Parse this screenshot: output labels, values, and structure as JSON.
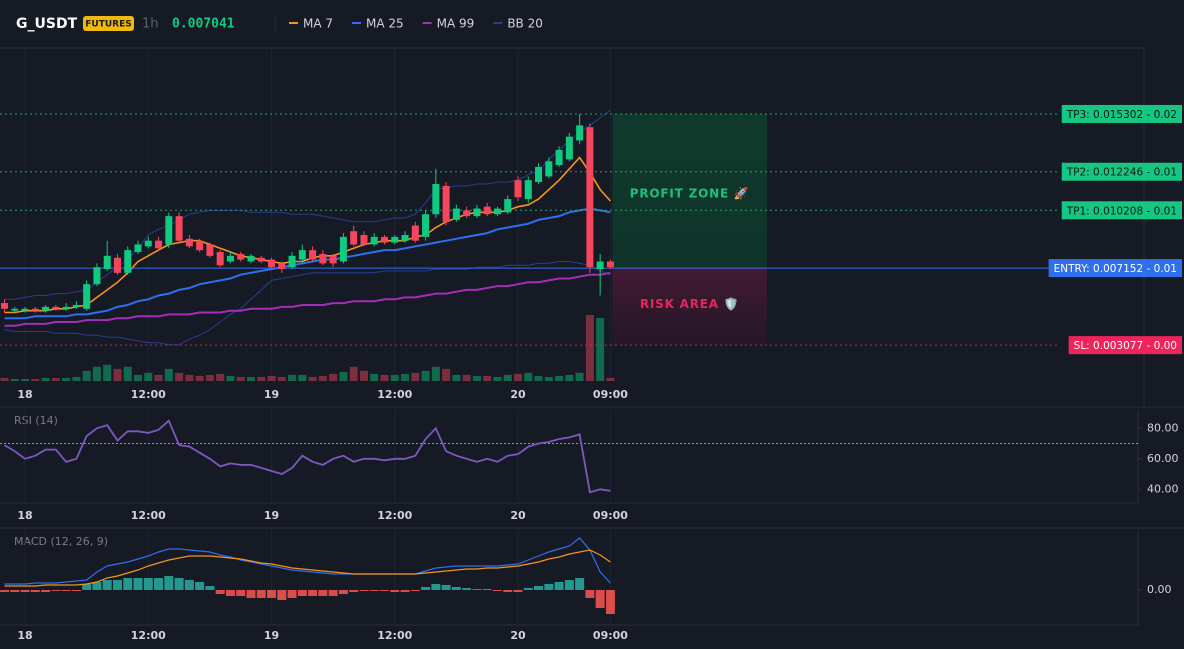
{
  "header": {
    "symbol": "G_USDT",
    "badge": "FUTURES",
    "interval": "1h",
    "price": "0.007041"
  },
  "chart_data": [
    {
      "type": "candlestick",
      "categories": [
        null,
        null,
        "18",
        null,
        null,
        null,
        null,
        null,
        null,
        null,
        null,
        null,
        null,
        null,
        "12:00",
        null,
        null,
        null,
        null,
        null,
        null,
        null,
        null,
        null,
        null,
        null,
        "19",
        null,
        null,
        null,
        null,
        null,
        null,
        null,
        null,
        null,
        null,
        null,
        "12:00",
        null,
        null,
        null,
        null,
        null,
        null,
        null,
        null,
        null,
        null,
        null,
        "20",
        null,
        null,
        null,
        null,
        null,
        null,
        null,
        null,
        "09:00"
      ],
      "open": [
        0.0053,
        0.0049,
        0.0049,
        0.005,
        0.0049,
        0.0051,
        0.005,
        0.0051,
        0.005,
        0.0063,
        0.0071,
        0.0077,
        0.0069,
        0.008,
        0.0083,
        0.0086,
        0.0084,
        0.0099,
        0.0087,
        0.0086,
        0.0084,
        0.008,
        0.0075,
        0.0079,
        0.0075,
        0.0077,
        0.0076,
        0.0074,
        0.0072,
        0.0076,
        0.0081,
        0.0079,
        0.0078,
        0.0075,
        0.0091,
        0.0089,
        0.0084,
        0.0088,
        0.0085,
        0.0086,
        0.0094,
        0.0088,
        0.01,
        0.0115,
        0.0097,
        0.0102,
        0.0099,
        0.0104,
        0.01,
        0.0101,
        0.0118,
        0.0108,
        0.0117,
        0.012,
        0.0126,
        0.0129,
        0.0139,
        0.0146,
        0.0071,
        0.0075
      ],
      "high": [
        0.0055,
        0.0051,
        0.0051,
        0.0051,
        0.0052,
        0.0052,
        0.0053,
        0.0054,
        0.0065,
        0.0074,
        0.0086,
        0.0079,
        0.0083,
        0.0086,
        0.0088,
        0.0088,
        0.0101,
        0.0101,
        0.0089,
        0.0087,
        0.0085,
        0.0081,
        0.008,
        0.008,
        0.0079,
        0.0078,
        0.0077,
        0.0075,
        0.008,
        0.0084,
        0.0083,
        0.0081,
        0.0079,
        0.009,
        0.0094,
        0.0091,
        0.009,
        0.0089,
        0.0089,
        0.0091,
        0.0096,
        0.0102,
        0.0124,
        0.0117,
        0.0105,
        0.0104,
        0.0105,
        0.0106,
        0.0104,
        0.011,
        0.012,
        0.012,
        0.0127,
        0.013,
        0.0136,
        0.0143,
        0.0153,
        0.0148,
        0.0079,
        0.0076
      ],
      "low": [
        0.0048,
        0.0048,
        0.0048,
        0.0048,
        0.0048,
        0.0049,
        0.0049,
        0.005,
        0.0049,
        0.0062,
        0.007,
        0.0068,
        0.0068,
        0.0079,
        0.0082,
        0.0081,
        0.0082,
        0.0085,
        0.0082,
        0.008,
        0.0077,
        0.0072,
        0.0074,
        0.0075,
        0.0074,
        0.0074,
        0.0071,
        0.0069,
        0.0071,
        0.0075,
        0.0075,
        0.0073,
        0.0072,
        0.0074,
        0.0083,
        0.0083,
        0.0083,
        0.0084,
        0.0084,
        0.0085,
        0.0085,
        0.0086,
        0.0098,
        0.0094,
        0.0096,
        0.0098,
        0.0098,
        0.0099,
        0.0099,
        0.01,
        0.0107,
        0.0106,
        0.0116,
        0.0119,
        0.0125,
        0.0128,
        0.0137,
        0.0069,
        0.0057,
        0.0071
      ],
      "close": [
        0.005,
        0.005,
        0.005,
        0.0049,
        0.0051,
        0.005,
        0.0051,
        0.0052,
        0.0063,
        0.0072,
        0.0078,
        0.0069,
        0.0081,
        0.0084,
        0.0086,
        0.0082,
        0.0099,
        0.0086,
        0.0083,
        0.0081,
        0.0078,
        0.0073,
        0.0078,
        0.0076,
        0.0078,
        0.0075,
        0.0072,
        0.0071,
        0.0078,
        0.0081,
        0.0076,
        0.0074,
        0.0074,
        0.0088,
        0.0084,
        0.0084,
        0.0088,
        0.0085,
        0.0088,
        0.0089,
        0.0086,
        0.01,
        0.0116,
        0.0096,
        0.0103,
        0.0099,
        0.0103,
        0.01,
        0.0103,
        0.0108,
        0.0109,
        0.0118,
        0.0125,
        0.0128,
        0.0134,
        0.0141,
        0.0147,
        0.0072,
        0.0075,
        0.0072
      ],
      "volume": [
        3,
        2,
        2,
        2,
        3,
        3,
        3,
        4,
        10,
        14,
        16,
        12,
        14,
        6,
        8,
        6,
        12,
        8,
        6,
        5,
        6,
        7,
        5,
        4,
        4,
        4,
        5,
        4,
        6,
        6,
        4,
        5,
        7,
        9,
        14,
        10,
        7,
        6,
        6,
        7,
        8,
        10,
        14,
        12,
        6,
        6,
        5,
        5,
        4,
        6,
        7,
        8,
        5,
        4,
        5,
        6,
        8,
        65,
        62,
        3
      ],
      "up_color": "#0ecb81",
      "down_color": "#f6465d",
      "series": [
        {
          "name": "MA 7",
          "color": "#f7931a",
          "values": [
            0.0048,
            0.0048,
            0.0049,
            0.0049,
            0.0049,
            0.005,
            0.005,
            0.0051,
            0.0052,
            0.0056,
            0.006,
            0.0064,
            0.0069,
            0.0075,
            0.0078,
            0.0081,
            0.0084,
            0.0085,
            0.0086,
            0.0086,
            0.0084,
            0.0082,
            0.008,
            0.0078,
            0.0077,
            0.0076,
            0.0075,
            0.0074,
            0.0075,
            0.0075,
            0.0077,
            0.0078,
            0.0078,
            0.008,
            0.0082,
            0.0084,
            0.0085,
            0.0086,
            0.0086,
            0.0086,
            0.0088,
            0.0089,
            0.0093,
            0.0096,
            0.0098,
            0.01,
            0.0101,
            0.0101,
            0.0101,
            0.0102,
            0.0104,
            0.0105,
            0.0108,
            0.0113,
            0.0118,
            0.0124,
            0.013,
            0.0122,
            0.0113,
            0.0107
          ]
        },
        {
          "name": "MA 25",
          "color": "#2f6fed",
          "values": [
            0.0045,
            0.0045,
            0.0045,
            0.0046,
            0.0046,
            0.0046,
            0.0046,
            0.0047,
            0.0047,
            0.0048,
            0.0049,
            0.0051,
            0.0052,
            0.0054,
            0.0055,
            0.0057,
            0.0058,
            0.006,
            0.0061,
            0.0063,
            0.0064,
            0.0065,
            0.0066,
            0.0068,
            0.0069,
            0.007,
            0.0071,
            0.0072,
            0.0073,
            0.0074,
            0.0075,
            0.0076,
            0.0076,
            0.0077,
            0.0078,
            0.0079,
            0.008,
            0.0081,
            0.0081,
            0.0082,
            0.0083,
            0.0084,
            0.0085,
            0.0086,
            0.0087,
            0.0088,
            0.0089,
            0.009,
            0.0092,
            0.0093,
            0.0094,
            0.0095,
            0.0097,
            0.0098,
            0.0099,
            0.0101,
            0.0102,
            0.0103,
            0.0102,
            0.0101
          ]
        },
        {
          "name": "MA 99",
          "color": "#a12fb8",
          "values": [
            0.0041,
            0.0041,
            0.0042,
            0.0042,
            0.0042,
            0.0043,
            0.0043,
            0.0043,
            0.0044,
            0.0044,
            0.0044,
            0.0045,
            0.0045,
            0.0046,
            0.0046,
            0.0046,
            0.0047,
            0.0047,
            0.0047,
            0.0048,
            0.0048,
            0.0048,
            0.0049,
            0.0049,
            0.005,
            0.005,
            0.005,
            0.0051,
            0.0051,
            0.0052,
            0.0052,
            0.0052,
            0.0053,
            0.0053,
            0.0054,
            0.0054,
            0.0054,
            0.0055,
            0.0055,
            0.0056,
            0.0056,
            0.0057,
            0.0058,
            0.0058,
            0.0059,
            0.006,
            0.006,
            0.0061,
            0.0062,
            0.0062,
            0.0063,
            0.0064,
            0.0064,
            0.0065,
            0.0066,
            0.0066,
            0.0067,
            0.0068,
            0.0068,
            0.0069
          ]
        },
        {
          "name": "BB 20",
          "color": "#2a3d8f",
          "upper": [
            0.0055,
            0.0055,
            0.0056,
            0.0057,
            0.0057,
            0.0058,
            0.0058,
            0.0059,
            0.006,
            0.0064,
            0.0068,
            0.0072,
            0.0076,
            0.0082,
            0.0089,
            0.0092,
            0.0094,
            0.0097,
            0.01,
            0.0101,
            0.0102,
            0.0102,
            0.0102,
            0.0102,
            0.0101,
            0.0101,
            0.0101,
            0.0101,
            0.01,
            0.01,
            0.01,
            0.0099,
            0.0098,
            0.0097,
            0.0096,
            0.0096,
            0.0096,
            0.0097,
            0.0098,
            0.0098,
            0.01,
            0.0106,
            0.0113,
            0.0114,
            0.0115,
            0.0115,
            0.0116,
            0.0116,
            0.0117,
            0.0117,
            0.0118,
            0.0121,
            0.0123,
            0.0129,
            0.0134,
            0.0139,
            0.0143,
            0.0147,
            0.0151,
            0.0155
          ],
          "lower": [
            0.0039,
            0.0038,
            0.0038,
            0.0038,
            0.0038,
            0.0037,
            0.0037,
            0.0037,
            0.0036,
            0.0036,
            0.0035,
            0.0035,
            0.0034,
            0.0033,
            0.0032,
            0.0032,
            0.0031,
            0.0031,
            0.0034,
            0.0036,
            0.0039,
            0.0043,
            0.0047,
            0.005,
            0.0055,
            0.006,
            0.0065,
            0.0066,
            0.0067,
            0.0068,
            0.0069,
            0.0069,
            0.0069,
            0.0069,
            0.0069,
            0.0069,
            0.0069,
            0.007,
            0.007,
            0.007,
            0.007,
            0.007,
            0.0071,
            0.0071,
            0.0071,
            0.0071,
            0.0072,
            0.0072,
            0.0072,
            0.0073,
            0.0073,
            0.0073,
            0.0074,
            0.0074,
            0.0075,
            0.0075,
            0.0074,
            0.0073,
            0.007,
            0.0068
          ]
        }
      ],
      "ylim": [
        0.00118,
        0.01879
      ],
      "levels": [
        {
          "label": "TP3: 0.015302 - 0.02",
          "value": 0.015302,
          "color": "#16c784",
          "text_color": "#0b1a12",
          "dashed": true
        },
        {
          "label": "TP2: 0.012246 - 0.01",
          "value": 0.012246,
          "color": "#16c784",
          "text_color": "#0b1a12",
          "dashed": true
        },
        {
          "label": "TP1: 0.010208 - 0.01",
          "value": 0.010208,
          "color": "#16c784",
          "text_color": "#0b1a12",
          "dashed": true
        },
        {
          "label": "ENTRY: 0.007152 - 0.01",
          "value": 0.007152,
          "color": "#2f6fed",
          "text_color": "#ffffff",
          "dashed": false
        },
        {
          "label": "SL: 0.003077 - 0.00",
          "value": 0.003077,
          "color": "#f0245c",
          "text_color": "#ffffff",
          "dashed": true
        }
      ],
      "zones": [
        {
          "label": "PROFIT ZONE 🚀",
          "color": "#19c37d"
        },
        {
          "label": "RISK AREA 🛡️",
          "color": "#e8245f"
        }
      ]
    },
    {
      "type": "line",
      "title": "RSI (14)",
      "series": [
        {
          "color": "#7e57c2",
          "values": [
            69,
            65,
            60,
            62,
            66,
            66,
            58,
            60,
            75,
            80,
            82,
            72,
            78,
            78,
            77,
            79,
            85,
            69,
            68,
            64,
            60,
            55,
            57,
            56,
            56,
            54,
            52,
            50,
            54,
            62,
            58,
            56,
            60,
            62,
            58,
            60,
            60,
            59,
            60,
            60,
            62,
            73,
            80,
            65,
            62,
            60,
            58,
            60,
            58,
            62,
            63,
            68,
            70,
            71,
            73,
            74,
            76,
            38,
            40,
            39
          ]
        }
      ],
      "ylim": [
        31,
        92
      ],
      "yticks": [
        {
          "value": 80,
          "label": "80.00"
        },
        {
          "value": 60,
          "label": "60.00"
        },
        {
          "value": 40,
          "label": "40.00"
        }
      ],
      "hline": 70
    },
    {
      "type": "macd",
      "title": "MACD (12, 26, 9)",
      "series": [
        {
          "color": "#2f6fed",
          "values": [
            6e-05,
            6e-05,
            6e-05,
            7e-05,
            7e-05,
            7e-05,
            8e-05,
            9e-05,
            0.0001,
            0.00018,
            0.00024,
            0.00026,
            0.00028,
            0.00031,
            0.00034,
            0.00038,
            0.00041,
            0.00041,
            0.0004,
            0.00039,
            0.00038,
            0.00035,
            0.00033,
            0.0003,
            0.00028,
            0.00026,
            0.00024,
            0.00022,
            0.0002,
            0.00019,
            0.00018,
            0.00017,
            0.00016,
            0.00016,
            0.00016,
            0.00016,
            0.00016,
            0.00016,
            0.00016,
            0.00016,
            0.00016,
            0.00019,
            0.00022,
            0.00023,
            0.00024,
            0.00024,
            0.00024,
            0.00024,
            0.00024,
            0.00025,
            0.00026,
            0.0003,
            0.00034,
            0.00038,
            0.00041,
            0.00044,
            0.00052,
            0.0004,
            0.00018,
            7e-05
          ]
        },
        {
          "color": "#f7931a",
          "values": [
            4e-05,
            4e-05,
            4e-05,
            4e-05,
            5e-05,
            5e-05,
            5e-05,
            5e-05,
            6e-05,
            8e-05,
            0.00012,
            0.00014,
            0.00017,
            0.0002,
            0.00024,
            0.00027,
            0.0003,
            0.00032,
            0.00034,
            0.00034,
            0.00034,
            0.00033,
            0.00032,
            0.00031,
            0.00029,
            0.00027,
            0.00026,
            0.00024,
            0.00022,
            0.00021,
            0.0002,
            0.00019,
            0.00018,
            0.00017,
            0.00016,
            0.00016,
            0.00016,
            0.00016,
            0.00016,
            0.00016,
            0.00016,
            0.00017,
            0.00018,
            0.00019,
            0.0002,
            0.00021,
            0.00021,
            0.00022,
            0.00022,
            0.00023,
            0.00024,
            0.00026,
            0.00028,
            0.00031,
            0.00033,
            0.00036,
            0.00038,
            0.0004,
            0.00035,
            0.00028
          ]
        }
      ],
      "histogram": [
        -2e-05,
        -2e-05,
        -2e-05,
        -2e-05,
        -2e-05,
        -1e-05,
        -1e-05,
        -1e-05,
        6e-05,
        8e-05,
        0.0001,
        0.0001,
        0.00012,
        0.00012,
        0.00012,
        0.00012,
        0.00014,
        0.00012,
        0.0001,
        8e-05,
        4e-05,
        -4e-05,
        -6e-05,
        -6e-05,
        -8e-05,
        -8e-05,
        -8e-05,
        -0.0001,
        -8e-05,
        -6e-05,
        -6e-05,
        -6e-05,
        -6e-05,
        -4e-05,
        -2e-05,
        -1e-05,
        -1e-05,
        -1e-05,
        -2e-05,
        -2e-05,
        -1e-05,
        3e-05,
        6e-05,
        5e-05,
        3e-05,
        2e-05,
        1e-05,
        1e-05,
        -1e-05,
        -2e-05,
        -2e-05,
        2e-05,
        4e-05,
        6e-05,
        8e-05,
        0.0001,
        0.00012,
        -8e-05,
        -0.00018,
        -0.00024
      ],
      "up_color": "#26a69a",
      "down_color": "#ef5350",
      "ylim": [
        -0.00035,
        0.0006
      ],
      "yticks": [
        {
          "value": 0,
          "label": "0.00"
        }
      ]
    }
  ]
}
